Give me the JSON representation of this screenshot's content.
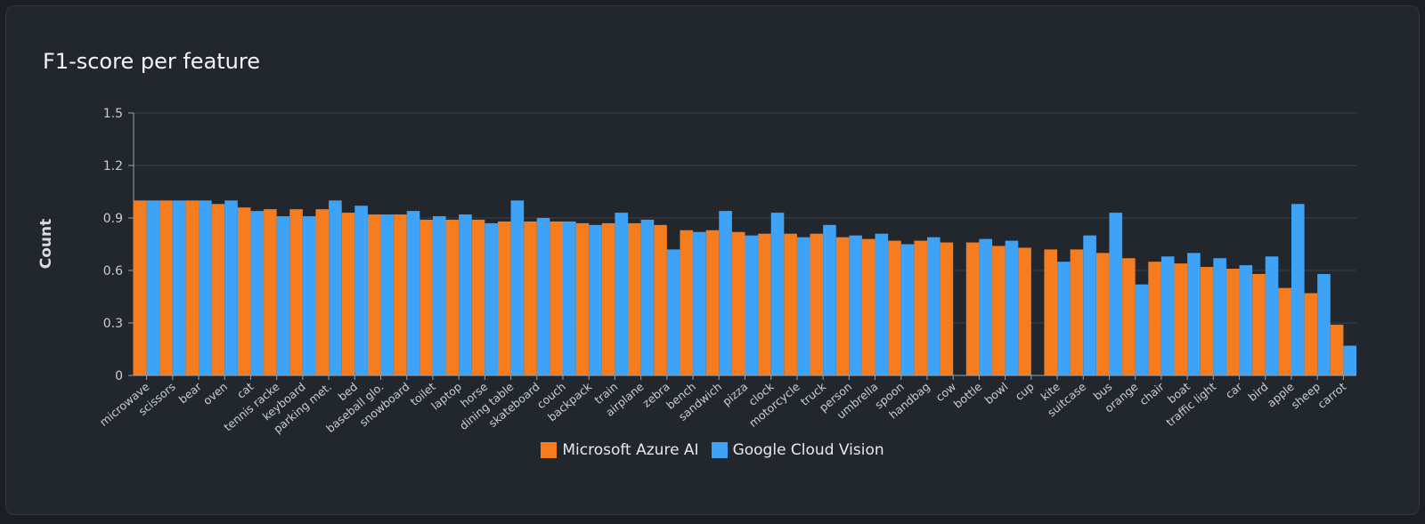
{
  "chart_data": {
    "type": "bar",
    "title": "F1-score per feature",
    "ylabel": "Count",
    "ylim": [
      0,
      1.5
    ],
    "yticks": [
      "0",
      "0.3",
      "0.6",
      "0.9",
      "1.2",
      "1.5"
    ],
    "yticks_values": [
      0,
      0.3,
      0.6,
      0.9,
      1.2,
      1.5
    ],
    "grid": true,
    "legend_position": "bottom",
    "categories": [
      "microwave",
      "scissors",
      "bear",
      "oven",
      "cat",
      "tennis racket",
      "keyboard",
      "parking meter",
      "bed",
      "baseball glove",
      "snowboard",
      "toilet",
      "laptop",
      "horse",
      "dining table",
      "skateboard",
      "couch",
      "backpack",
      "train",
      "airplane",
      "zebra",
      "bench",
      "sandwich",
      "pizza",
      "clock",
      "motorcycle",
      "truck",
      "person",
      "umbrella",
      "spoon",
      "handbag",
      "cow",
      "bottle",
      "bowl",
      "cup",
      "kite",
      "suitcase",
      "bus",
      "orange",
      "chair",
      "boat",
      "traffic light",
      "car",
      "bird",
      "apple",
      "sheep",
      "carrot"
    ],
    "category_labels": [
      "microwave",
      "scissors",
      "bear",
      "oven",
      "cat",
      "tennis racke",
      "keyboard",
      "parking met.",
      "bed",
      "baseball glo.",
      "snowboard",
      "toilet",
      "laptop",
      "horse",
      "dining table",
      "skateboard",
      "couch",
      "backpack",
      "train",
      "airplane",
      "zebra",
      "bench",
      "sandwich",
      "pizza",
      "clock",
      "motorcycle",
      "truck",
      "person",
      "umbrella",
      "spoon",
      "handbag",
      "cow",
      "bottle",
      "bowl",
      "cup",
      "kite",
      "suitcase",
      "bus",
      "orange",
      "chair",
      "boat",
      "traffic light",
      "car",
      "bird",
      "apple",
      "sheep",
      "carrot"
    ],
    "series": [
      {
        "name": "Microsoft Azure AI",
        "color": "#f57c1f",
        "values": [
          1.0,
          1.0,
          1.0,
          0.98,
          0.96,
          0.95,
          0.95,
          0.95,
          0.93,
          0.92,
          0.92,
          0.89,
          0.89,
          0.89,
          0.88,
          0.88,
          0.88,
          0.87,
          0.87,
          0.87,
          0.86,
          0.83,
          0.83,
          0.82,
          0.81,
          0.81,
          0.81,
          0.79,
          0.78,
          0.77,
          0.77,
          0.76,
          0.76,
          0.74,
          0.73,
          0.72,
          0.72,
          0.7,
          0.67,
          0.65,
          0.64,
          0.62,
          0.61,
          0.58,
          0.5,
          0.47,
          0.29
        ]
      },
      {
        "name": "Google Cloud Vision",
        "color": "#3ea2f7",
        "values": [
          1.0,
          1.0,
          1.0,
          1.0,
          0.94,
          0.91,
          0.91,
          1.0,
          0.97,
          0.92,
          0.94,
          0.91,
          0.92,
          0.87,
          1.0,
          0.9,
          0.88,
          0.86,
          0.93,
          0.89,
          0.72,
          0.82,
          0.94,
          0.8,
          0.93,
          0.79,
          0.86,
          0.8,
          0.81,
          0.75,
          0.79,
          0.0,
          0.78,
          0.77,
          0.0,
          0.65,
          0.8,
          0.93,
          0.52,
          0.68,
          0.7,
          0.67,
          0.63,
          0.68,
          0.98,
          0.58,
          0.17
        ]
      }
    ]
  }
}
